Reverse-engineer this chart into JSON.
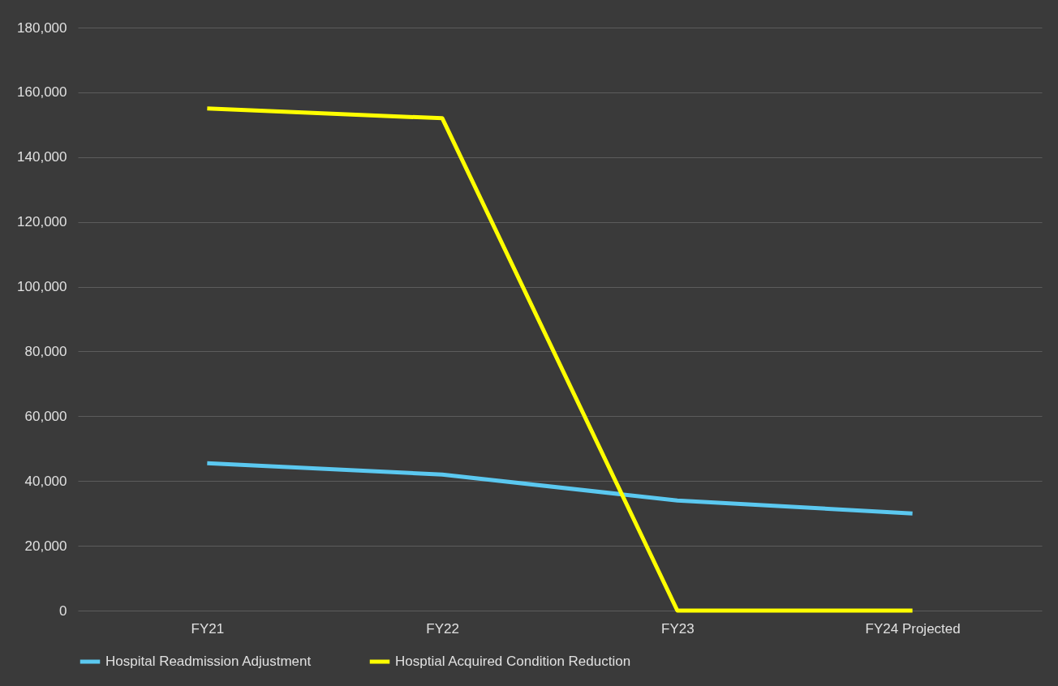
{
  "chart_data": {
    "type": "line",
    "categories": [
      "FY21",
      "FY22",
      "FY23",
      "FY24 Projected"
    ],
    "series": [
      {
        "name": "Hospital Readmission Adjustment",
        "color": "#5bc8f0",
        "values": [
          45500,
          42000,
          34000,
          30000
        ]
      },
      {
        "name": "Hosptial Acquired Condition Reduction",
        "color": "#ffff00",
        "values": [
          155000,
          152000,
          0,
          0
        ]
      }
    ],
    "ylim": [
      0,
      180000
    ],
    "yticks": [
      0,
      {
        "value": 20000,
        "label": "20,000"
      },
      {
        "value": 40000,
        "label": "40,000"
      },
      {
        "value": 60000,
        "label": "60,000"
      },
      {
        "value": 80000,
        "label": "80,000"
      },
      {
        "value": 100000,
        "label": "100,000"
      },
      {
        "value": 120000,
        "label": "120,000"
      },
      {
        "value": 140000,
        "label": "140,000"
      },
      {
        "value": 160000,
        "label": "160,000"
      },
      {
        "value": 180000,
        "label": "180,000"
      }
    ],
    "grid": "y",
    "legend": "bottom",
    "marker": "none",
    "line_style": "solid"
  }
}
